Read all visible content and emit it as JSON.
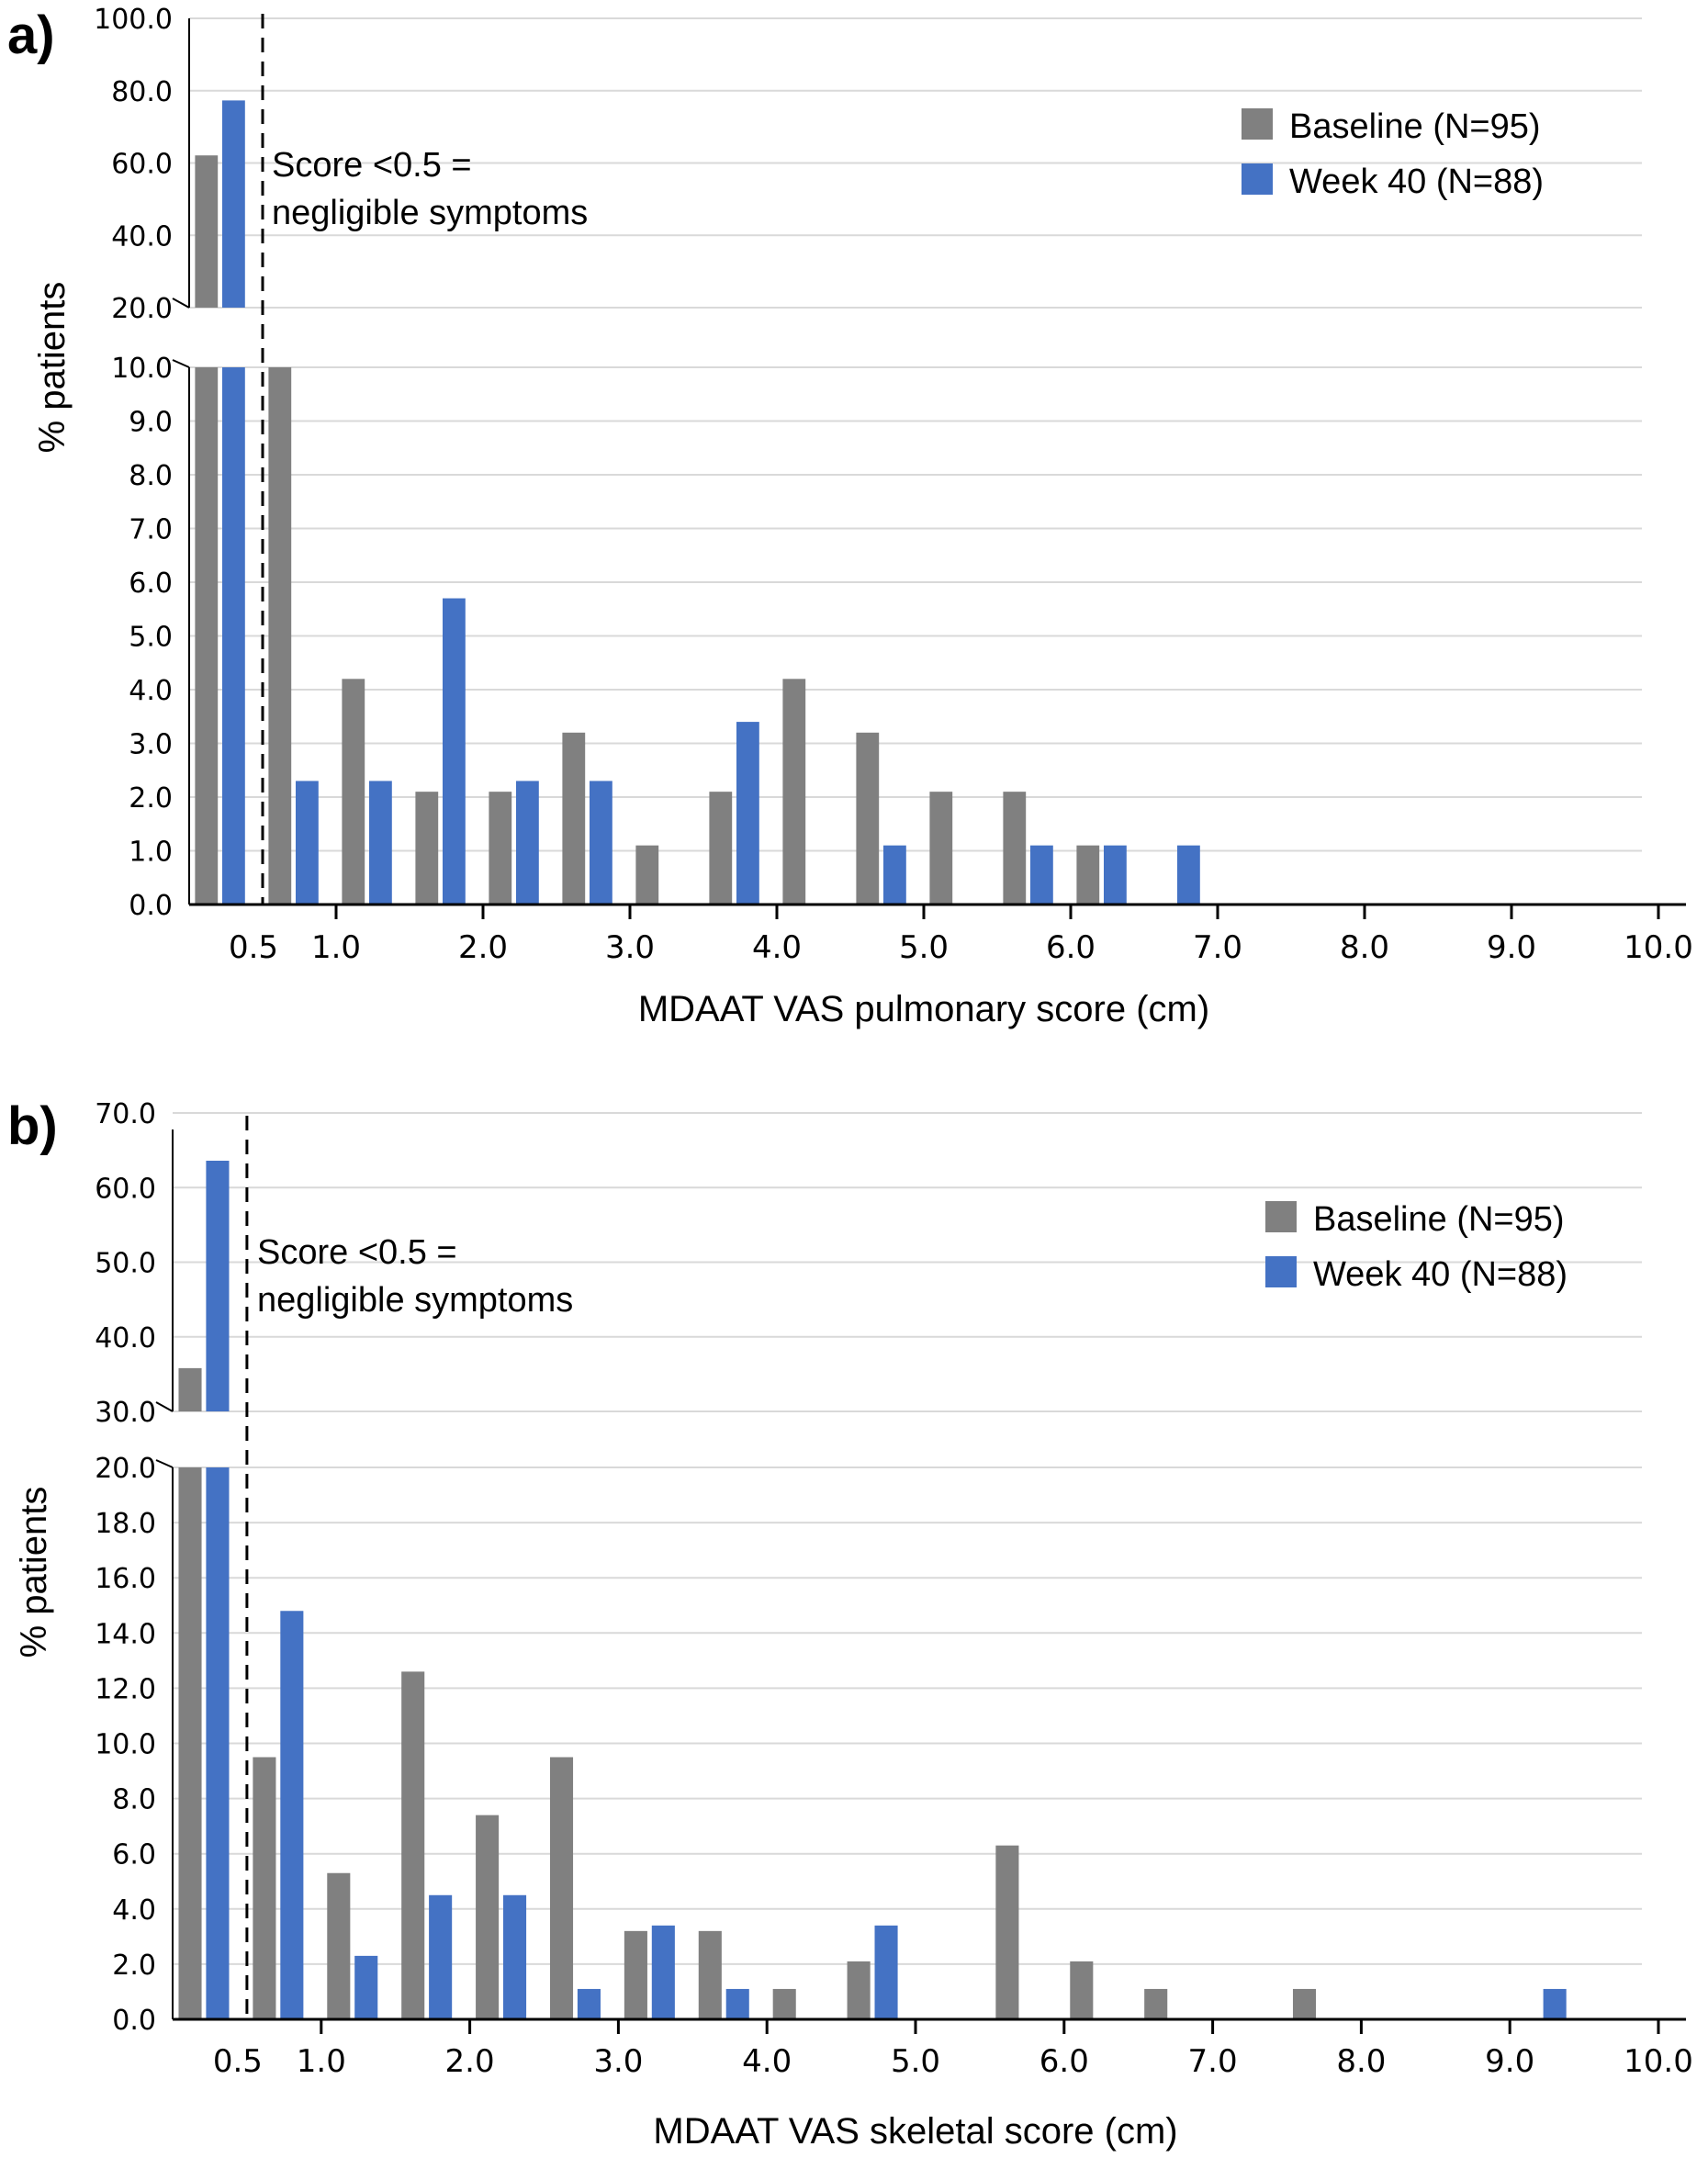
{
  "colors": {
    "baseline": "#808080",
    "week40": "#4472c4"
  },
  "chart_data": [
    {
      "type": "bar",
      "panel_label": "a)",
      "xlabel": "MDAAT VAS pulmonary score (cm)",
      "ylabel": "% patients",
      "bins": [
        "<0.5",
        "0.5-1.0",
        "1.0-1.5",
        "1.5-2.0",
        "2.0-2.5",
        "2.5-3.0",
        "3.0-3.5",
        "3.5-4.0",
        "4.0-4.5",
        "4.5-5.0",
        "5.0-5.5",
        "5.5-6.0",
        "6.0-6.5",
        "6.5-7.0",
        "7.0-7.5",
        "7.5-8.0",
        "8.0-8.5",
        "8.5-9.0",
        "9.0-9.5",
        "9.5-10.0"
      ],
      "x_tick_labels": [
        "0.5",
        "1.0",
        "2.0",
        "3.0",
        "4.0",
        "5.0",
        "6.0",
        "7.0",
        "8.0",
        "9.0",
        "10.0"
      ],
      "x_ticks": [
        0.5,
        1,
        2,
        3,
        4,
        5,
        6,
        7,
        8,
        9,
        10
      ],
      "xlim": [
        0,
        10
      ],
      "y_broken": true,
      "y_lower": {
        "ylim": [
          0,
          10
        ],
        "ticks": [
          "0.0",
          "1.0",
          "2.0",
          "3.0",
          "4.0",
          "5.0",
          "6.0",
          "7.0",
          "8.0",
          "9.0",
          "10.0"
        ],
        "tick_values": [
          0,
          1,
          2,
          3,
          4,
          5,
          6,
          7,
          8,
          9,
          10
        ]
      },
      "y_upper": {
        "ylim": [
          20,
          100
        ],
        "ticks": [
          "20.0",
          "40.0",
          "60.0",
          "80.0",
          "100.0"
        ],
        "tick_values": [
          20,
          40,
          60,
          80,
          100
        ]
      },
      "series": [
        {
          "name": "Baseline (N=95)",
          "key": "baseline",
          "values": [
            62.1,
            10.5,
            4.2,
            2.1,
            2.1,
            3.2,
            1.1,
            2.1,
            4.2,
            3.2,
            2.1,
            2.1,
            1.1,
            0,
            0,
            0,
            0,
            0,
            0,
            0
          ]
        },
        {
          "name": "Week 40 (N=88)",
          "key": "week40",
          "values": [
            77.3,
            2.3,
            2.3,
            5.7,
            2.3,
            2.3,
            0,
            3.4,
            0,
            1.1,
            0,
            1.1,
            1.1,
            1.1,
            0,
            0,
            0,
            0,
            0,
            0
          ]
        }
      ],
      "reference_line": {
        "x": 0.5,
        "style": "dashed"
      },
      "annotation": [
        "Score <0.5 =",
        "negligible symptoms"
      ],
      "legend_position": "top-right",
      "grid": true
    },
    {
      "type": "bar",
      "panel_label": "b)",
      "xlabel": "MDAAT VAS skeletal score (cm)",
      "ylabel": "% patients",
      "bins": [
        "<0.5",
        "0.5-1.0",
        "1.0-1.5",
        "1.5-2.0",
        "2.0-2.5",
        "2.5-3.0",
        "3.0-3.5",
        "3.5-4.0",
        "4.0-4.5",
        "4.5-5.0",
        "5.0-5.5",
        "5.5-6.0",
        "6.0-6.5",
        "6.5-7.0",
        "7.0-7.5",
        "7.5-8.0",
        "8.0-8.5",
        "8.5-9.0",
        "9.0-9.5",
        "9.5-10.0"
      ],
      "x_tick_labels": [
        "0.5",
        "1.0",
        "2.0",
        "3.0",
        "4.0",
        "5.0",
        "6.0",
        "7.0",
        "8.0",
        "9.0",
        "10.0"
      ],
      "x_ticks": [
        0.5,
        1,
        2,
        3,
        4,
        5,
        6,
        7,
        8,
        9,
        10
      ],
      "xlim": [
        0,
        10
      ],
      "y_broken": true,
      "y_lower": {
        "ylim": [
          0,
          20
        ],
        "ticks": [
          "0.0",
          "2.0",
          "4.0",
          "6.0",
          "8.0",
          "10.0",
          "12.0",
          "14.0",
          "16.0",
          "18.0",
          "20.0"
        ],
        "tick_values": [
          0,
          2,
          4,
          6,
          8,
          10,
          12,
          14,
          16,
          18,
          20
        ]
      },
      "y_upper": {
        "ylim": [
          30,
          70
        ],
        "ticks": [
          "30.0",
          "40.0",
          "50.0",
          "60.0",
          "70.0"
        ],
        "tick_values": [
          30,
          40,
          50,
          60,
          70
        ]
      },
      "series": [
        {
          "name": "Baseline (N=95)",
          "key": "baseline",
          "values": [
            35.8,
            9.5,
            5.3,
            12.6,
            7.4,
            9.5,
            3.2,
            3.2,
            1.1,
            2.1,
            0,
            6.3,
            2.1,
            1.1,
            0,
            1.1,
            0,
            0,
            0,
            0
          ]
        },
        {
          "name": "Week 40 (N=88)",
          "key": "week40",
          "values": [
            63.6,
            14.8,
            2.3,
            4.5,
            4.5,
            1.1,
            3.4,
            1.1,
            0,
            3.4,
            0,
            0,
            0,
            0,
            0,
            0,
            0,
            0,
            1.1,
            0
          ]
        }
      ],
      "reference_line": {
        "x": 0.5,
        "style": "dashed"
      },
      "annotation": [
        "Score <0.5 =",
        "negligible symptoms"
      ],
      "legend_position": "top-right",
      "grid": true
    }
  ]
}
